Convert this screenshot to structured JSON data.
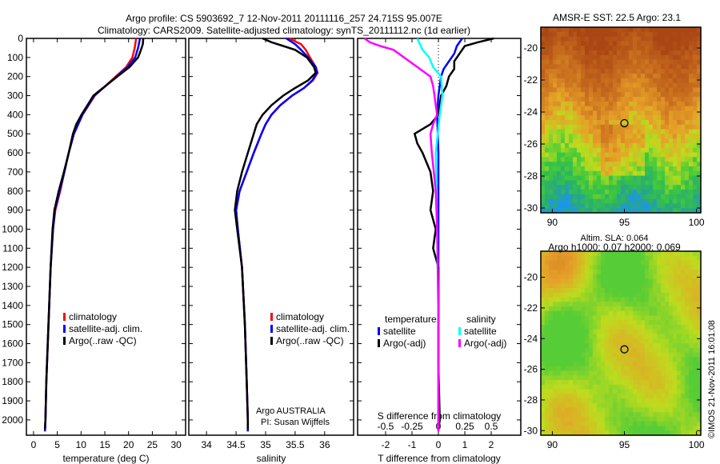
{
  "title_line1": "Argo profile: CS 5903692_7 12-Nov-2011 20111116_257 24.715S 95.007E",
  "title_line2": "Climatology: CARS2009. Satellite-adjusted climatology: synTS_20111112.nc (1d earlier)",
  "footer_credit": "©IMOS 21-Nov-2011 16:01:08",
  "argo_org": "Argo AUSTRALIA",
  "argo_pi": "PI: Susan Wijffels",
  "colors": {
    "climatology": "#ff0000",
    "satellite": "#0000ff",
    "argo": "#000000",
    "sal_satellite": "#00ffff",
    "sal_argo": "#ff00ff"
  },
  "chart_data": [
    {
      "type": "line",
      "name": "temperature",
      "xlabel": "temperature (deg C)",
      "ylabel": "",
      "xlim": [
        -1.5,
        32
      ],
      "ylim": [
        2080,
        0
      ],
      "xticks": [
        0,
        5,
        10,
        15,
        20,
        25,
        30
      ],
      "yticks": [
        0,
        100,
        200,
        300,
        400,
        500,
        600,
        700,
        800,
        900,
        1000,
        1100,
        1200,
        1300,
        1400,
        1500,
        1600,
        1700,
        1800,
        1900,
        2000
      ],
      "legend": [
        "climatology",
        "satellite-adj. clim.",
        "Argo(..raw -QC)"
      ],
      "legend_position": "lower-center",
      "series": [
        {
          "name": "climatology",
          "color": "#ff0000",
          "depth": [
            0,
            50,
            100,
            150,
            200,
            300,
            400,
            500,
            600,
            700,
            800,
            900,
            1000,
            1200,
            1400,
            1600,
            1800,
            2000,
            2060
          ],
          "values": [
            21.6,
            21.3,
            20.8,
            19.5,
            17.3,
            12.9,
            10.3,
            8.5,
            7.4,
            6.5,
            5.6,
            4.6,
            4.1,
            3.6,
            3.3,
            3.0,
            2.7,
            2.5,
            2.4
          ]
        },
        {
          "name": "satellite-adj. clim.",
          "color": "#0000ff",
          "depth": [
            0,
            50,
            100,
            150,
            200,
            300,
            400,
            500,
            600,
            700,
            800,
            900,
            1000,
            1200,
            1400,
            1600,
            1800,
            2000,
            2060
          ],
          "values": [
            22.4,
            22.0,
            21.4,
            19.8,
            17.5,
            12.8,
            10.3,
            8.5,
            7.4,
            6.5,
            5.5,
            4.5,
            4.1,
            3.6,
            3.3,
            3.0,
            2.7,
            2.5,
            2.4
          ]
        },
        {
          "name": "Argo(..raw -QC)",
          "color": "#000000",
          "depth": [
            0,
            30,
            60,
            100,
            150,
            200,
            300,
            400,
            450,
            500,
            600,
            700,
            800,
            900,
            1000,
            1200,
            1400,
            1600,
            1800,
            2000,
            2050
          ],
          "values": [
            23.1,
            23.0,
            22.6,
            22.0,
            20.2,
            17.6,
            12.6,
            10.1,
            9.0,
            8.3,
            7.4,
            6.4,
            5.3,
            4.4,
            4.0,
            3.6,
            3.3,
            3.0,
            2.7,
            2.5,
            2.4
          ]
        }
      ]
    },
    {
      "type": "line",
      "name": "salinity",
      "xlabel": "salinity",
      "ylabel": "",
      "xlim": [
        33.7,
        36.49
      ],
      "ylim": [
        2080,
        0
      ],
      "xticks": [
        34,
        34.5,
        35,
        35.5,
        36
      ],
      "legend": [
        "climatology",
        "satellite-adj. clim.",
        "Argo(..raw -QC)"
      ],
      "legend_position": "lower-right",
      "series": [
        {
          "name": "climatology",
          "color": "#ff0000",
          "depth": [
            0,
            30,
            60,
            100,
            150,
            180,
            220,
            260,
            300,
            350,
            400,
            450,
            500,
            600,
            700,
            800,
            900,
            1000,
            1200,
            1500,
            1800,
            2000,
            2060
          ],
          "values": [
            35.4,
            35.6,
            35.68,
            35.75,
            35.85,
            35.88,
            35.8,
            35.65,
            35.45,
            35.25,
            35.1,
            35.0,
            34.93,
            34.8,
            34.68,
            34.56,
            34.5,
            34.53,
            34.6,
            34.65,
            34.68,
            34.7,
            34.7
          ]
        },
        {
          "name": "satellite-adj. clim.",
          "color": "#0000ff",
          "depth": [
            0,
            30,
            60,
            100,
            150,
            180,
            220,
            260,
            300,
            350,
            400,
            450,
            500,
            600,
            700,
            800,
            900,
            1000,
            1200,
            1500,
            1800,
            2000,
            2060
          ],
          "values": [
            35.35,
            35.5,
            35.6,
            35.72,
            35.85,
            35.87,
            35.79,
            35.65,
            35.45,
            35.25,
            35.1,
            35.0,
            34.93,
            34.8,
            34.68,
            34.56,
            34.5,
            34.53,
            34.6,
            34.65,
            34.68,
            34.7,
            34.7
          ]
        },
        {
          "name": "Argo(..raw -QC)",
          "color": "#000000",
          "depth": [
            0,
            20,
            40,
            60,
            100,
            150,
            180,
            220,
            260,
            300,
            350,
            400,
            450,
            500,
            600,
            700,
            800,
            900,
            1000,
            1200,
            1500,
            1800,
            2000,
            2050
          ],
          "values": [
            34.95,
            35.1,
            35.3,
            35.5,
            35.7,
            35.82,
            35.85,
            35.72,
            35.5,
            35.3,
            35.1,
            34.95,
            34.85,
            34.8,
            34.7,
            34.6,
            34.52,
            34.48,
            34.52,
            34.6,
            34.65,
            34.68,
            34.7,
            34.7
          ]
        }
      ]
    },
    {
      "type": "line",
      "name": "difference",
      "xlabel": "T difference from climatology",
      "x2label": "S difference from climatology",
      "xlim": [
        -3.06,
        3.12
      ],
      "ylim": [
        2080,
        0
      ],
      "xticks": [
        -2,
        -1,
        0,
        1,
        2
      ],
      "x2ticks": [
        "-0.5",
        "-0.25",
        "0",
        "0.25",
        "0.5"
      ],
      "legend_titles": [
        "temperature",
        "salinity"
      ],
      "legend": [
        "satellite",
        "Argo(-adj)",
        "satellite",
        "Argo(-adj)"
      ],
      "series": [
        {
          "name": "temperature satellite",
          "color": "#0000ff",
          "depth": [
            0,
            40,
            80,
            120,
            160,
            200,
            300,
            400,
            600,
            800,
            1000,
            1400,
            2000,
            2060
          ],
          "values": [
            0.9,
            0.7,
            0.6,
            0.4,
            0.2,
            0.1,
            0,
            -0.05,
            0,
            0,
            0,
            0,
            0,
            0
          ]
        },
        {
          "name": "temperature Argo(-adj)",
          "color": "#000000",
          "depth": [
            0,
            20,
            40,
            80,
            120,
            160,
            200,
            250,
            300,
            400,
            450,
            500,
            550,
            600,
            700,
            800,
            900,
            1000,
            1100,
            1200,
            1400,
            1700,
            2000,
            2050
          ],
          "values": [
            2.1,
            1.5,
            1.0,
            0.8,
            0.6,
            0.6,
            0.4,
            0.3,
            0.1,
            0,
            -0.3,
            -0.9,
            -0.8,
            -0.6,
            -0.3,
            -0.2,
            -0.3,
            -0.1,
            -0.2,
            0,
            0,
            0,
            0.05,
            0
          ]
        },
        {
          "name": "salinity satellite",
          "color": "#00ffff",
          "depth": [
            0,
            30,
            60,
            100,
            150,
            200,
            300,
            400,
            600,
            1000,
            1500,
            2060
          ],
          "values": [
            -0.8,
            -0.7,
            -0.6,
            -0.35,
            -0.2,
            0.1,
            0.15,
            0.05,
            -0.1,
            -0.05,
            0,
            0
          ]
        },
        {
          "name": "salinity Argo(-adj)",
          "color": "#ff00ff",
          "depth": [
            0,
            20,
            40,
            60,
            100,
            150,
            200,
            250,
            300,
            350,
            400,
            450,
            500,
            600,
            800,
            1000,
            1400,
            2060
          ],
          "values": [
            -2.8,
            -2.6,
            -2.2,
            -1.7,
            -1.3,
            -0.8,
            -0.3,
            -0.2,
            -0.15,
            -0.1,
            -0.05,
            -0.2,
            -0.3,
            -0.25,
            -0.1,
            -0.05,
            0,
            0
          ]
        }
      ]
    },
    {
      "type": "heatmap",
      "name": "sst-map",
      "title": "AMSR-E SST: 22.5 Argo: 23.1",
      "xticks": [
        90,
        95,
        100
      ],
      "yticks": [
        -20,
        -22,
        -24,
        -26,
        -28,
        -30
      ],
      "xlim": [
        89.2,
        100.3
      ],
      "ylim": [
        -30.3,
        -18.7
      ],
      "marker": [
        95.0,
        -24.7
      ]
    },
    {
      "type": "heatmap",
      "name": "sla-map",
      "title": "Altim. SLA: 0.064",
      "subtitle": "Argo h1000: 0.07 h2000: 0.069",
      "xticks": [
        90,
        95,
        100
      ],
      "yticks": [
        -20,
        -22,
        -24,
        -26,
        -28,
        -30
      ],
      "xlim": [
        89.2,
        100.3
      ],
      "ylim": [
        -30.3,
        -18.3
      ],
      "marker": [
        95.0,
        -24.7
      ]
    }
  ]
}
